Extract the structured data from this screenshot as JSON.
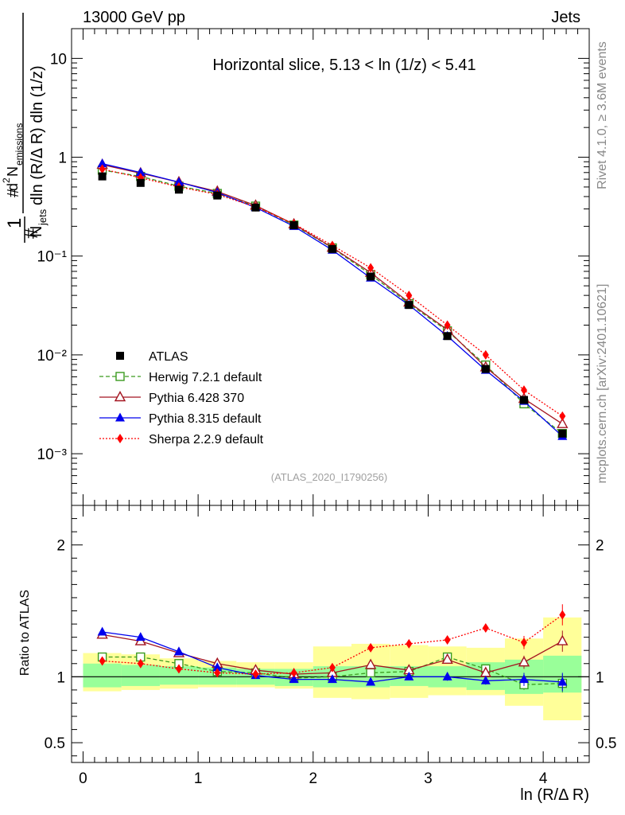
{
  "header": {
    "left": "13000 GeV pp",
    "right": "Jets"
  },
  "side_labels": {
    "rivet": "Rivet 4.1.0, ≥ 3.6M events",
    "mcplots": "mcplots.cern.ch [arXiv:2401.10621]"
  },
  "analysis_id": "(ATLAS_2020_I1790256)",
  "chart_data": [
    {
      "type": "scatter",
      "panel": "main",
      "title": "Horizontal slice, 5.13 < ln (1/z) < 5.41",
      "xlabel": "ln (R/Δ R)",
      "ylabel": "1/N_jets d²N_emissions / dln(R/ΔR) dln(1/z)",
      "yscale": "log",
      "xlim": [
        -0.1,
        4.4
      ],
      "ylim": [
        0.0003,
        20
      ],
      "ytick_labels": [
        "10⁻³",
        "10⁻²",
        "10⁻¹",
        "1",
        "10"
      ],
      "legend_position": "bottom-left",
      "x": [
        0.167,
        0.5,
        0.833,
        1.167,
        1.5,
        1.833,
        2.167,
        2.5,
        2.833,
        3.167,
        3.5,
        3.833,
        4.167
      ],
      "series": [
        {
          "name": "ATLAS",
          "color": "#000000",
          "marker": "square-filled",
          "values": [
            0.64,
            0.55,
            0.47,
            0.41,
            0.31,
            0.205,
            0.118,
            0.062,
            0.032,
            0.0155,
            0.0072,
            0.0035,
            0.0016
          ]
        },
        {
          "name": "Herwig 7.2.1 default",
          "color": "#3a9a1e",
          "marker": "square-open",
          "line": "dashed",
          "values": [
            0.74,
            0.64,
            0.51,
            0.43,
            0.32,
            0.206,
            0.121,
            0.065,
            0.033,
            0.0175,
            0.0079,
            0.0032,
            0.0016
          ]
        },
        {
          "name": "Pythia 6.428 370",
          "color": "#a41520",
          "marker": "triangle-open",
          "line": "solid",
          "values": [
            0.84,
            0.69,
            0.56,
            0.45,
            0.325,
            0.21,
            0.122,
            0.068,
            0.034,
            0.018,
            0.0075,
            0.0036,
            0.002
          ]
        },
        {
          "name": "Pythia 8.315 default",
          "color": "#0000ee",
          "marker": "triangle-filled",
          "line": "solid",
          "values": [
            0.86,
            0.7,
            0.56,
            0.44,
            0.31,
            0.2,
            0.115,
            0.06,
            0.032,
            0.0155,
            0.007,
            0.0034,
            0.0015
          ]
        },
        {
          "name": "Sherpa 2.2.9 default",
          "color": "#ff0000",
          "marker": "diamond-filled",
          "line": "dotted",
          "values": [
            0.76,
            0.62,
            0.5,
            0.42,
            0.315,
            0.212,
            0.128,
            0.076,
            0.04,
            0.02,
            0.01,
            0.0044,
            0.0024
          ]
        }
      ]
    },
    {
      "type": "scatter",
      "panel": "ratio",
      "xlabel": "ln (R/Δ R)",
      "ylabel": "Ratio to ATLAS",
      "xlim": [
        -0.1,
        4.4
      ],
      "ylim": [
        0.35,
        2.3
      ],
      "x_ticks": [
        0,
        1,
        2,
        3,
        4
      ],
      "y_ticks": [
        0.5,
        1,
        2
      ],
      "bins": [
        [
          0,
          0.333
        ],
        [
          0.333,
          0.667
        ],
        [
          0.667,
          1.0
        ],
        [
          1.0,
          1.333
        ],
        [
          1.333,
          1.667
        ],
        [
          1.667,
          2.0
        ],
        [
          2.0,
          2.333
        ],
        [
          2.333,
          2.667
        ],
        [
          2.667,
          3.0
        ],
        [
          3.0,
          3.333
        ],
        [
          3.333,
          3.667
        ],
        [
          3.667,
          4.0
        ],
        [
          4.0,
          4.333
        ]
      ],
      "green_band": [
        [
          0.92,
          1.1
        ],
        [
          0.93,
          1.09
        ],
        [
          0.94,
          1.08
        ],
        [
          0.94,
          1.07
        ],
        [
          0.94,
          1.06
        ],
        [
          0.93,
          1.06
        ],
        [
          0.92,
          1.08
        ],
        [
          0.92,
          1.08
        ],
        [
          0.93,
          1.08
        ],
        [
          0.92,
          1.08
        ],
        [
          0.9,
          1.11
        ],
        [
          0.87,
          1.13
        ],
        [
          0.88,
          1.16
        ]
      ],
      "yellow_band": [
        [
          0.89,
          1.18
        ],
        [
          0.9,
          1.17
        ],
        [
          0.91,
          1.14
        ],
        [
          0.92,
          1.12
        ],
        [
          0.92,
          1.11
        ],
        [
          0.91,
          1.11
        ],
        [
          0.84,
          1.23
        ],
        [
          0.83,
          1.25
        ],
        [
          0.84,
          1.24
        ],
        [
          0.86,
          1.23
        ],
        [
          0.86,
          1.22
        ],
        [
          0.78,
          1.29
        ],
        [
          0.67,
          1.45
        ]
      ],
      "series": [
        {
          "name": "Herwig 7.2.1 default",
          "values": [
            1.15,
            1.15,
            1.1,
            1.04,
            1.03,
            0.99,
            1.0,
            1.03,
            1.04,
            1.15,
            1.06,
            0.94,
            0.95
          ],
          "errors": [
            0.02,
            0.02,
            0.02,
            0.02,
            0.02,
            0.02,
            0.02,
            0.02,
            0.02,
            0.03,
            0.03,
            0.04,
            0.07
          ]
        },
        {
          "name": "Pythia 6.428 370",
          "values": [
            1.32,
            1.27,
            1.18,
            1.1,
            1.05,
            1.02,
            1.03,
            1.09,
            1.05,
            1.13,
            1.03,
            1.11,
            1.27
          ],
          "errors": [
            0.02,
            0.02,
            0.02,
            0.02,
            0.02,
            0.02,
            0.02,
            0.02,
            0.02,
            0.03,
            0.03,
            0.05,
            0.08
          ]
        },
        {
          "name": "Pythia 8.315 default",
          "values": [
            1.34,
            1.3,
            1.19,
            1.07,
            1.01,
            0.98,
            0.98,
            0.96,
            1.0,
            1.0,
            0.97,
            0.98,
            0.96
          ],
          "errors": [
            0.02,
            0.02,
            0.02,
            0.02,
            0.02,
            0.02,
            0.02,
            0.02,
            0.02,
            0.03,
            0.03,
            0.05,
            0.07
          ]
        },
        {
          "name": "Sherpa 2.2.9 default",
          "values": [
            1.12,
            1.1,
            1.06,
            1.03,
            1.02,
            1.03,
            1.07,
            1.22,
            1.25,
            1.28,
            1.37,
            1.26,
            1.47
          ],
          "errors": [
            0.02,
            0.02,
            0.02,
            0.02,
            0.02,
            0.02,
            0.02,
            0.02,
            0.02,
            0.03,
            0.03,
            0.05,
            0.08
          ]
        }
      ]
    }
  ]
}
